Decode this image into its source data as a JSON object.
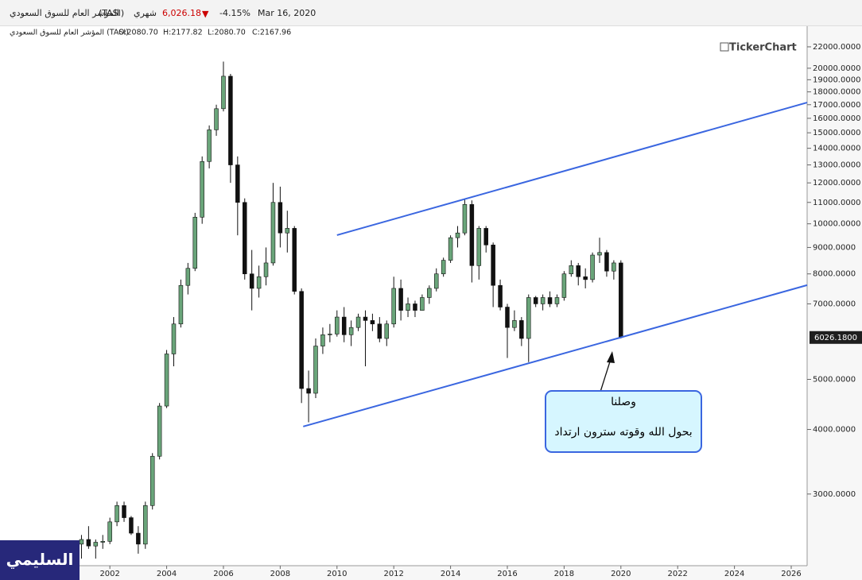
{
  "header": {
    "name": "المؤشر العام للسوق السعودي",
    "symbol": "(TASI)",
    "period": "شهري",
    "price": "6,026.18",
    "change": "-4.15%",
    "date": "Mar 16, 2020"
  },
  "chart_data": {
    "type": "candlestick",
    "info": {
      "name": "المؤشر العام للسوق السعودي (TASI)",
      "open": "O:2080.70",
      "high": "H:2177.82",
      "low": "L:2080.70",
      "close": "C:2167.96"
    },
    "watermark": "TickerChart",
    "log_scale": true,
    "up_color": "#6aa57a",
    "down_color": "#111111",
    "xlim": [
      1998.13,
      2026.56
    ],
    "xticks": [
      2002,
      2004,
      2006,
      2008,
      2010,
      2012,
      2014,
      2016,
      2018,
      2020,
      2022,
      2024,
      2026
    ],
    "ylim": [
      2180,
      22950
    ],
    "yticks": [
      {
        "value": 3000,
        "label": "3000.0000"
      },
      {
        "value": 4000,
        "label": "4000.0000"
      },
      {
        "value": 5000,
        "label": "5000.0000"
      },
      {
        "value": 7000,
        "label": "7000.0000"
      },
      {
        "value": 8000,
        "label": "8000.0000"
      },
      {
        "value": 9000,
        "label": "9000.0000"
      },
      {
        "value": 10000,
        "label": "10000.0000"
      },
      {
        "value": 11000,
        "label": "11000.0000"
      },
      {
        "value": 12000,
        "label": "12000.0000"
      },
      {
        "value": 13000,
        "label": "13000.0000"
      },
      {
        "value": 14000,
        "label": "14000.0000"
      },
      {
        "value": 15000,
        "label": "15000.0000"
      },
      {
        "value": 16000,
        "label": "16000.0000"
      },
      {
        "value": 17000,
        "label": "17000.0000"
      },
      {
        "value": 18000,
        "label": "18000.0000"
      },
      {
        "value": 19000,
        "label": "19000.0000"
      },
      {
        "value": 20000,
        "label": "20000.0000"
      },
      {
        "value": 22000,
        "label": "22000.0000"
      }
    ],
    "last_price": {
      "value": 6026.18,
      "label": "6026.1800"
    },
    "x": [
      2001,
      2001.25,
      2001.5,
      2001.75,
      2002,
      2002.25,
      2002.5,
      2002.75,
      2003,
      2003.25,
      2003.5,
      2003.75,
      2004,
      2004.25,
      2004.5,
      2004.75,
      2005,
      2005.25,
      2005.5,
      2005.75,
      2006,
      2006.25,
      2006.5,
      2006.75,
      2007,
      2007.25,
      2007.5,
      2007.75,
      2008,
      2008.25,
      2008.5,
      2008.75,
      2009,
      2009.25,
      2009.5,
      2009.75,
      2010,
      2010.25,
      2010.5,
      2010.75,
      2011,
      2011.25,
      2011.5,
      2011.75,
      2012,
      2012.25,
      2012.5,
      2012.75,
      2013,
      2013.25,
      2013.5,
      2013.75,
      2014,
      2014.25,
      2014.5,
      2014.75,
      2015,
      2015.25,
      2015.5,
      2015.75,
      2016,
      2016.25,
      2016.5,
      2016.75,
      2017,
      2017.25,
      2017.5,
      2017.75,
      2018,
      2018.25,
      2018.5,
      2018.75,
      2019,
      2019.25,
      2019.5,
      2019.75,
      2020
    ],
    "open": [
      2400,
      2450,
      2380,
      2420,
      2430,
      2650,
      2850,
      2700,
      2520,
      2400,
      2850,
      3550,
      4440,
      5600,
      6400,
      7600,
      8200,
      10300,
      13200,
      15200,
      16700,
      19300,
      13000,
      11000,
      8000,
      7500,
      7900,
      8400,
      11000,
      9600,
      9800,
      7400,
      4800,
      4700,
      5800,
      6100,
      6120,
      6600,
      6100,
      6300,
      6600,
      6500,
      6400,
      6000,
      6400,
      7500,
      6800,
      7000,
      6800,
      7200,
      7500,
      8000,
      8500,
      9400,
      9600,
      10900,
      8300,
      9800,
      9100,
      7600,
      6900,
      6300,
      6500,
      6000,
      7200,
      7000,
      7200,
      7000,
      7200,
      8000,
      8300,
      7900,
      7800,
      8700,
      8800,
      8100,
      8400
    ],
    "high": [
      2500,
      2600,
      2450,
      2500,
      2700,
      2900,
      2900,
      2720,
      2600,
      2900,
      3600,
      4500,
      5700,
      6600,
      7800,
      8400,
      10500,
      13500,
      15500,
      17000,
      20600,
      19500,
      13500,
      11200,
      8900,
      8300,
      9000,
      12000,
      11800,
      10600,
      9900,
      7500,
      5200,
      6000,
      6300,
      6400,
      6800,
      6900,
      6500,
      6700,
      6800,
      6700,
      6600,
      6500,
      7900,
      7800,
      7200,
      7100,
      7300,
      7600,
      8200,
      8600,
      9500,
      9900,
      11150,
      11100,
      9900,
      9900,
      9200,
      7800,
      7000,
      6800,
      6600,
      7300,
      7250,
      7300,
      7400,
      7300,
      8100,
      8500,
      8400,
      8200,
      8800,
      9400,
      8900,
      8500,
      8500
    ],
    "low": [
      2250,
      2350,
      2250,
      2350,
      2400,
      2600,
      2650,
      2500,
      2300,
      2350,
      2800,
      3500,
      4400,
      5300,
      6300,
      7300,
      8100,
      10000,
      12800,
      14800,
      16500,
      12000,
      9500,
      7800,
      6800,
      7200,
      7600,
      8300,
      9000,
      8800,
      7300,
      4500,
      4130,
      4600,
      5600,
      5900,
      6050,
      5900,
      5800,
      6200,
      5300,
      6200,
      5900,
      5800,
      6300,
      6500,
      6600,
      6600,
      6800,
      7000,
      7400,
      7900,
      8400,
      9000,
      9500,
      7700,
      7800,
      8800,
      6900,
      6800,
      5500,
      6200,
      5800,
      5400,
      6900,
      6800,
      6900,
      6900,
      7100,
      7900,
      7600,
      7500,
      7700,
      8400,
      7900,
      7800,
      6000
    ],
    "close": [
      2450,
      2380,
      2420,
      2430,
      2650,
      2850,
      2700,
      2520,
      2400,
      2850,
      3550,
      4440,
      5600,
      6400,
      7600,
      8200,
      10300,
      13200,
      15200,
      16700,
      19300,
      13000,
      11000,
      8000,
      7500,
      7900,
      8400,
      11000,
      9600,
      9800,
      7400,
      4800,
      4700,
      5800,
      6100,
      6120,
      6600,
      6100,
      6300,
      6600,
      6500,
      6400,
      6000,
      6400,
      7500,
      6800,
      7000,
      6800,
      7200,
      7500,
      8000,
      8500,
      9400,
      9600,
      10900,
      8300,
      9800,
      9100,
      7600,
      6900,
      6300,
      6500,
      6000,
      7200,
      7000,
      7200,
      7000,
      7200,
      8000,
      8300,
      7900,
      7800,
      8700,
      8800,
      8100,
      8400,
      6026
    ],
    "trendlines": [
      {
        "x": [
          2010,
          2026.56
        ],
        "y": [
          9509,
          17165
        ],
        "color": "#3a66e0"
      },
      {
        "x": [
          2008.81,
          2026.56
        ],
        "y": [
          4053,
          7609
        ],
        "color": "#3a66e0"
      }
    ],
    "annotation": {
      "lines": [
        "وصلنا",
        "بحول الله وقوته سترون ارتداد"
      ]
    },
    "badge": "السليمي"
  }
}
